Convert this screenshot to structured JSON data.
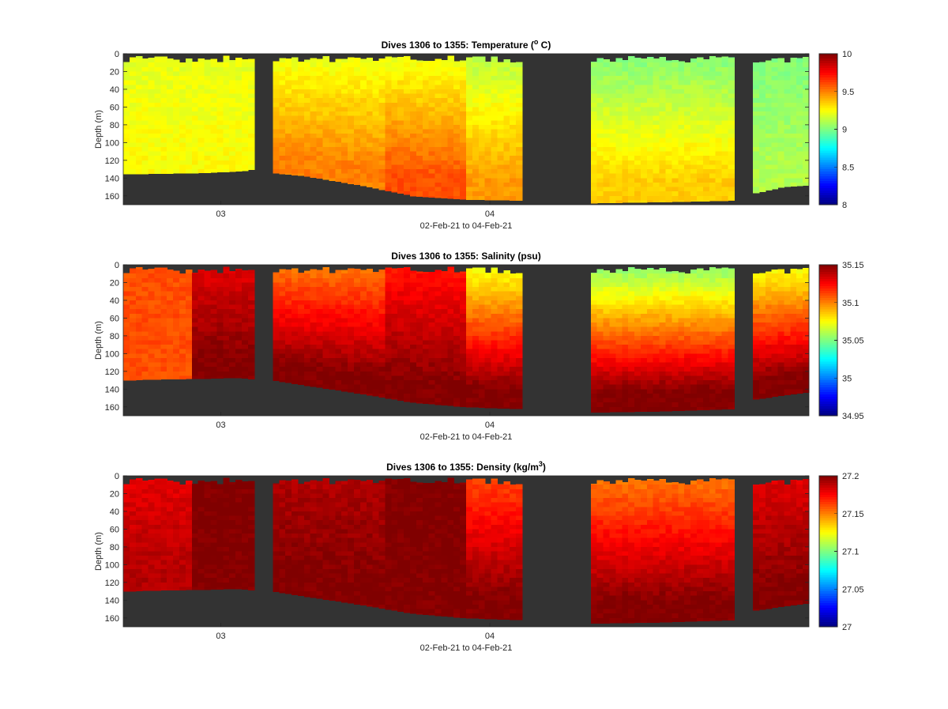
{
  "figure": {
    "xlabel": "02-Feb-21 to 04-Feb-21",
    "ylabel": "Depth (m)",
    "x_ticks": [
      "03",
      "04"
    ],
    "depth_ticks": [
      0,
      20,
      40,
      60,
      80,
      100,
      120,
      140,
      160
    ],
    "background_color": "#333333",
    "colormap": "jet"
  },
  "chart_data": [
    {
      "type": "heatmap",
      "title": "Dives 1306 to 1355: Temperature (",
      "title_sup": "o",
      "title_end": " C)",
      "x_ticks": [
        "03",
        "04"
      ],
      "xlabel": "02-Feb-21 to 04-Feb-21",
      "ylabel": "Depth (m)",
      "ylim": [
        0,
        170
      ],
      "y_ticks": [
        0,
        20,
        40,
        60,
        80,
        100,
        120,
        140,
        160
      ],
      "colorbar": {
        "min": 8,
        "max": 10,
        "ticks": [
          "10",
          "9.5",
          "9",
          "8.5",
          "8"
        ]
      },
      "x_range_days": [
        0,
        2.6
      ],
      "gaps_days": [
        [
          0.49,
          0.57
        ],
        [
          1.51,
          1.77
        ],
        [
          2.32,
          2.38
        ]
      ],
      "bottom_depth_m": [
        [
          0.0,
          135
        ],
        [
          0.1,
          135
        ],
        [
          0.3,
          134
        ],
        [
          0.45,
          132
        ],
        [
          0.49,
          130
        ],
        [
          0.57,
          134
        ],
        [
          0.7,
          138
        ],
        [
          0.9,
          148
        ],
        [
          1.1,
          160
        ],
        [
          1.3,
          164
        ],
        [
          1.51,
          165
        ],
        [
          1.77,
          168
        ],
        [
          2.0,
          167
        ],
        [
          2.32,
          165
        ],
        [
          2.38,
          158
        ],
        [
          2.5,
          150
        ],
        [
          2.6,
          148
        ]
      ],
      "value_profile": [
        {
          "from": 0.0,
          "to": 0.49,
          "surface": 9.2,
          "deep": 9.25
        },
        {
          "from": 0.57,
          "to": 1.0,
          "surface": 9.2,
          "deep": 9.5
        },
        {
          "from": 1.0,
          "to": 1.3,
          "surface": 9.2,
          "deep": 9.6
        },
        {
          "from": 1.3,
          "to": 1.51,
          "surface": 9.1,
          "deep": 9.45
        },
        {
          "from": 1.77,
          "to": 2.32,
          "surface": 9.0,
          "deep": 9.35
        },
        {
          "from": 2.38,
          "to": 2.6,
          "surface": 9.0,
          "deep": 9.1
        }
      ]
    },
    {
      "type": "heatmap",
      "title": "Dives 1306 to 1355: Salinity (psu)",
      "title_sup": "",
      "title_end": "",
      "x_ticks": [
        "03",
        "04"
      ],
      "xlabel": "02-Feb-21 to 04-Feb-21",
      "ylabel": "Depth (m)",
      "ylim": [
        0,
        170
      ],
      "y_ticks": [
        0,
        20,
        40,
        60,
        80,
        100,
        120,
        140,
        160
      ],
      "colorbar": {
        "min": 34.95,
        "max": 35.15,
        "ticks": [
          "35.15",
          "35.1",
          "35.05",
          "35",
          "34.95"
        ]
      },
      "x_range_days": [
        0,
        2.6
      ],
      "gaps_days": [
        [
          0.49,
          0.57
        ],
        [
          1.51,
          1.77
        ],
        [
          2.32,
          2.38
        ]
      ],
      "bottom_depth_m": [
        [
          0.0,
          130
        ],
        [
          0.1,
          129
        ],
        [
          0.3,
          128
        ],
        [
          0.45,
          127
        ],
        [
          0.49,
          129
        ],
        [
          0.57,
          130
        ],
        [
          0.7,
          136
        ],
        [
          0.9,
          145
        ],
        [
          1.1,
          155
        ],
        [
          1.3,
          160
        ],
        [
          1.51,
          162
        ],
        [
          1.77,
          166
        ],
        [
          2.0,
          165
        ],
        [
          2.32,
          162
        ],
        [
          2.38,
          152
        ],
        [
          2.5,
          147
        ],
        [
          2.6,
          143
        ]
      ],
      "value_profile": [
        {
          "from": 0.0,
          "to": 0.25,
          "surface": 35.11,
          "deep": 35.11
        },
        {
          "from": 0.25,
          "to": 0.49,
          "surface": 35.13,
          "deep": 35.15
        },
        {
          "from": 0.57,
          "to": 1.0,
          "surface": 35.1,
          "deep": 35.15
        },
        {
          "from": 1.0,
          "to": 1.3,
          "surface": 35.12,
          "deep": 35.15
        },
        {
          "from": 1.3,
          "to": 1.51,
          "surface": 35.07,
          "deep": 35.15
        },
        {
          "from": 1.77,
          "to": 2.32,
          "surface": 35.05,
          "deep": 35.15
        },
        {
          "from": 2.38,
          "to": 2.6,
          "surface": 35.07,
          "deep": 35.15
        }
      ]
    },
    {
      "type": "heatmap",
      "title": "Dives 1306 to 1355: Density (kg/m",
      "title_sup": "3",
      "title_end": ")",
      "x_ticks": [
        "03",
        "04"
      ],
      "xlabel": "02-Feb-21 to 04-Feb-21",
      "ylabel": "Depth (m)",
      "ylim": [
        0,
        170
      ],
      "y_ticks": [
        0,
        20,
        40,
        60,
        80,
        100,
        120,
        140,
        160
      ],
      "colorbar": {
        "min": 27,
        "max": 27.2,
        "ticks": [
          "27.2",
          "27.15",
          "27.1",
          "27.05",
          "27"
        ]
      },
      "x_range_days": [
        0,
        2.6
      ],
      "gaps_days": [
        [
          0.49,
          0.57
        ],
        [
          1.51,
          1.77
        ],
        [
          2.32,
          2.38
        ]
      ],
      "bottom_depth_m": [
        [
          0.0,
          130
        ],
        [
          0.1,
          129
        ],
        [
          0.3,
          128
        ],
        [
          0.45,
          127
        ],
        [
          0.49,
          129
        ],
        [
          0.57,
          130
        ],
        [
          0.7,
          136
        ],
        [
          0.9,
          145
        ],
        [
          1.1,
          155
        ],
        [
          1.3,
          160
        ],
        [
          1.51,
          162
        ],
        [
          1.77,
          166
        ],
        [
          2.0,
          165
        ],
        [
          2.32,
          162
        ],
        [
          2.38,
          152
        ],
        [
          2.5,
          147
        ],
        [
          2.6,
          143
        ]
      ],
      "value_profile": [
        {
          "from": 0.0,
          "to": 0.25,
          "surface": 27.18,
          "deep": 27.19
        },
        {
          "from": 0.25,
          "to": 0.49,
          "surface": 27.2,
          "deep": 27.2
        },
        {
          "from": 0.57,
          "to": 1.0,
          "surface": 27.19,
          "deep": 27.2
        },
        {
          "from": 1.0,
          "to": 1.3,
          "surface": 27.2,
          "deep": 27.2
        },
        {
          "from": 1.3,
          "to": 1.51,
          "surface": 27.16,
          "deep": 27.2
        },
        {
          "from": 1.77,
          "to": 2.32,
          "surface": 27.15,
          "deep": 27.2
        },
        {
          "from": 2.38,
          "to": 2.6,
          "surface": 27.18,
          "deep": 27.2
        }
      ]
    }
  ]
}
